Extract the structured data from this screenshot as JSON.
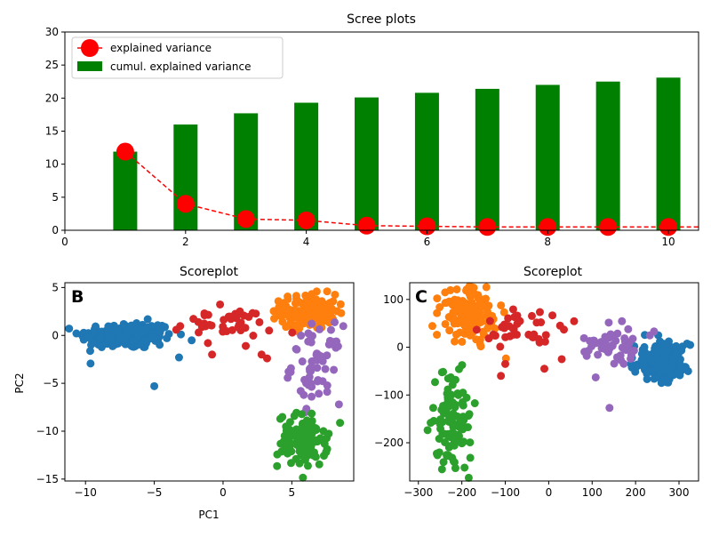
{
  "colors": {
    "bar": "#008000",
    "line": "#ff0000",
    "c0": "#1f77b4",
    "c1": "#ff7f0e",
    "c2": "#2ca02c",
    "c3": "#d62728",
    "c4": "#9467bd"
  },
  "chart_data": [
    {
      "type": "bar",
      "title": "Scree plots",
      "xlabel": "",
      "ylabel": "",
      "xlim": [
        0,
        10.5
      ],
      "ylim": [
        0,
        30
      ],
      "xticks": [
        0,
        2,
        4,
        6,
        8,
        10
      ],
      "yticks": [
        0,
        5,
        10,
        15,
        20,
        25,
        30
      ],
      "grid": false,
      "legend": "top-left",
      "series": [
        {
          "name": "explained variance",
          "kind": "line",
          "x": [
            1,
            2,
            3,
            4,
            5,
            6,
            7,
            8,
            9,
            10,
            10.5
          ],
          "values": [
            11.9,
            4.0,
            1.7,
            1.5,
            0.7,
            0.6,
            0.5,
            0.5,
            0.5,
            0.5,
            0.5
          ]
        },
        {
          "name": "cumul. explained variance",
          "kind": "bar",
          "x": [
            1,
            2,
            3,
            4,
            5,
            6,
            7,
            8,
            9,
            10
          ],
          "values": [
            11.9,
            16.0,
            17.7,
            19.3,
            20.1,
            20.8,
            21.4,
            22.0,
            22.5,
            23.1
          ]
        }
      ]
    },
    {
      "type": "scatter",
      "title": "Scoreplot",
      "panel_label": "B",
      "xlabel": "PC1",
      "ylabel": "PC2",
      "xlim": [
        -11.5,
        9.5
      ],
      "ylim": [
        -15.2,
        5.5
      ],
      "xticks": [
        -10,
        -5,
        0,
        5
      ],
      "yticks": [
        -15,
        -10,
        -5,
        0,
        5
      ],
      "clusters": [
        {
          "color": "c0",
          "cx": -7,
          "cy": 0,
          "sx": 1.7,
          "sy": 0.7,
          "n": 230,
          "extra": [
            [
              -5,
              -5.3
            ],
            [
              -3.2,
              -2.3
            ]
          ]
        },
        {
          "color": "c1",
          "cx": 6.2,
          "cy": 2.5,
          "sx": 1.0,
          "sy": 0.9,
          "n": 140
        },
        {
          "color": "c3",
          "cx": 0,
          "cy": 1.2,
          "sx": 1.8,
          "sy": 0.8,
          "n": 40,
          "extra": [
            [
              -0.8,
              -2.0
            ],
            [
              -1.1,
              -0.8
            ],
            [
              2.8,
              -2.0
            ],
            [
              3.2,
              -2.4
            ]
          ]
        },
        {
          "color": "c4",
          "cx": 6.8,
          "cy": -3,
          "sx": 0.9,
          "sy": 2.0,
          "n": 60
        },
        {
          "color": "c2",
          "cx": 5.8,
          "cy": -11,
          "sx": 0.9,
          "sy": 1.4,
          "n": 110
        }
      ]
    },
    {
      "type": "scatter",
      "title": "Scoreplot",
      "panel_label": "C",
      "xlabel": "",
      "ylabel": "",
      "xlim": [
        -320,
        345
      ],
      "ylim": [
        -280,
        135
      ],
      "xticks": [
        -300,
        -200,
        -100,
        0,
        100,
        200,
        300
      ],
      "yticks": [
        -200,
        -100,
        0,
        100
      ],
      "clusters": [
        {
          "color": "c0",
          "cx": 260,
          "cy": -30,
          "sx": 30,
          "sy": 18,
          "n": 230
        },
        {
          "color": "c1",
          "cx": -185,
          "cy": 70,
          "sx": 32,
          "sy": 28,
          "n": 140
        },
        {
          "color": "c3",
          "cx": -60,
          "cy": 40,
          "sx": 45,
          "sy": 22,
          "n": 40,
          "extra": [
            [
              -110,
              -60
            ],
            [
              -100,
              -35
            ],
            [
              30,
              -25
            ],
            [
              -10,
              -45
            ]
          ]
        },
        {
          "color": "c4",
          "cx": 150,
          "cy": 0,
          "sx": 35,
          "sy": 22,
          "n": 60,
          "extra": [
            [
              140,
              -127
            ]
          ]
        },
        {
          "color": "c2",
          "cx": -220,
          "cy": -160,
          "sx": 22,
          "sy": 55,
          "n": 110
        }
      ]
    }
  ]
}
